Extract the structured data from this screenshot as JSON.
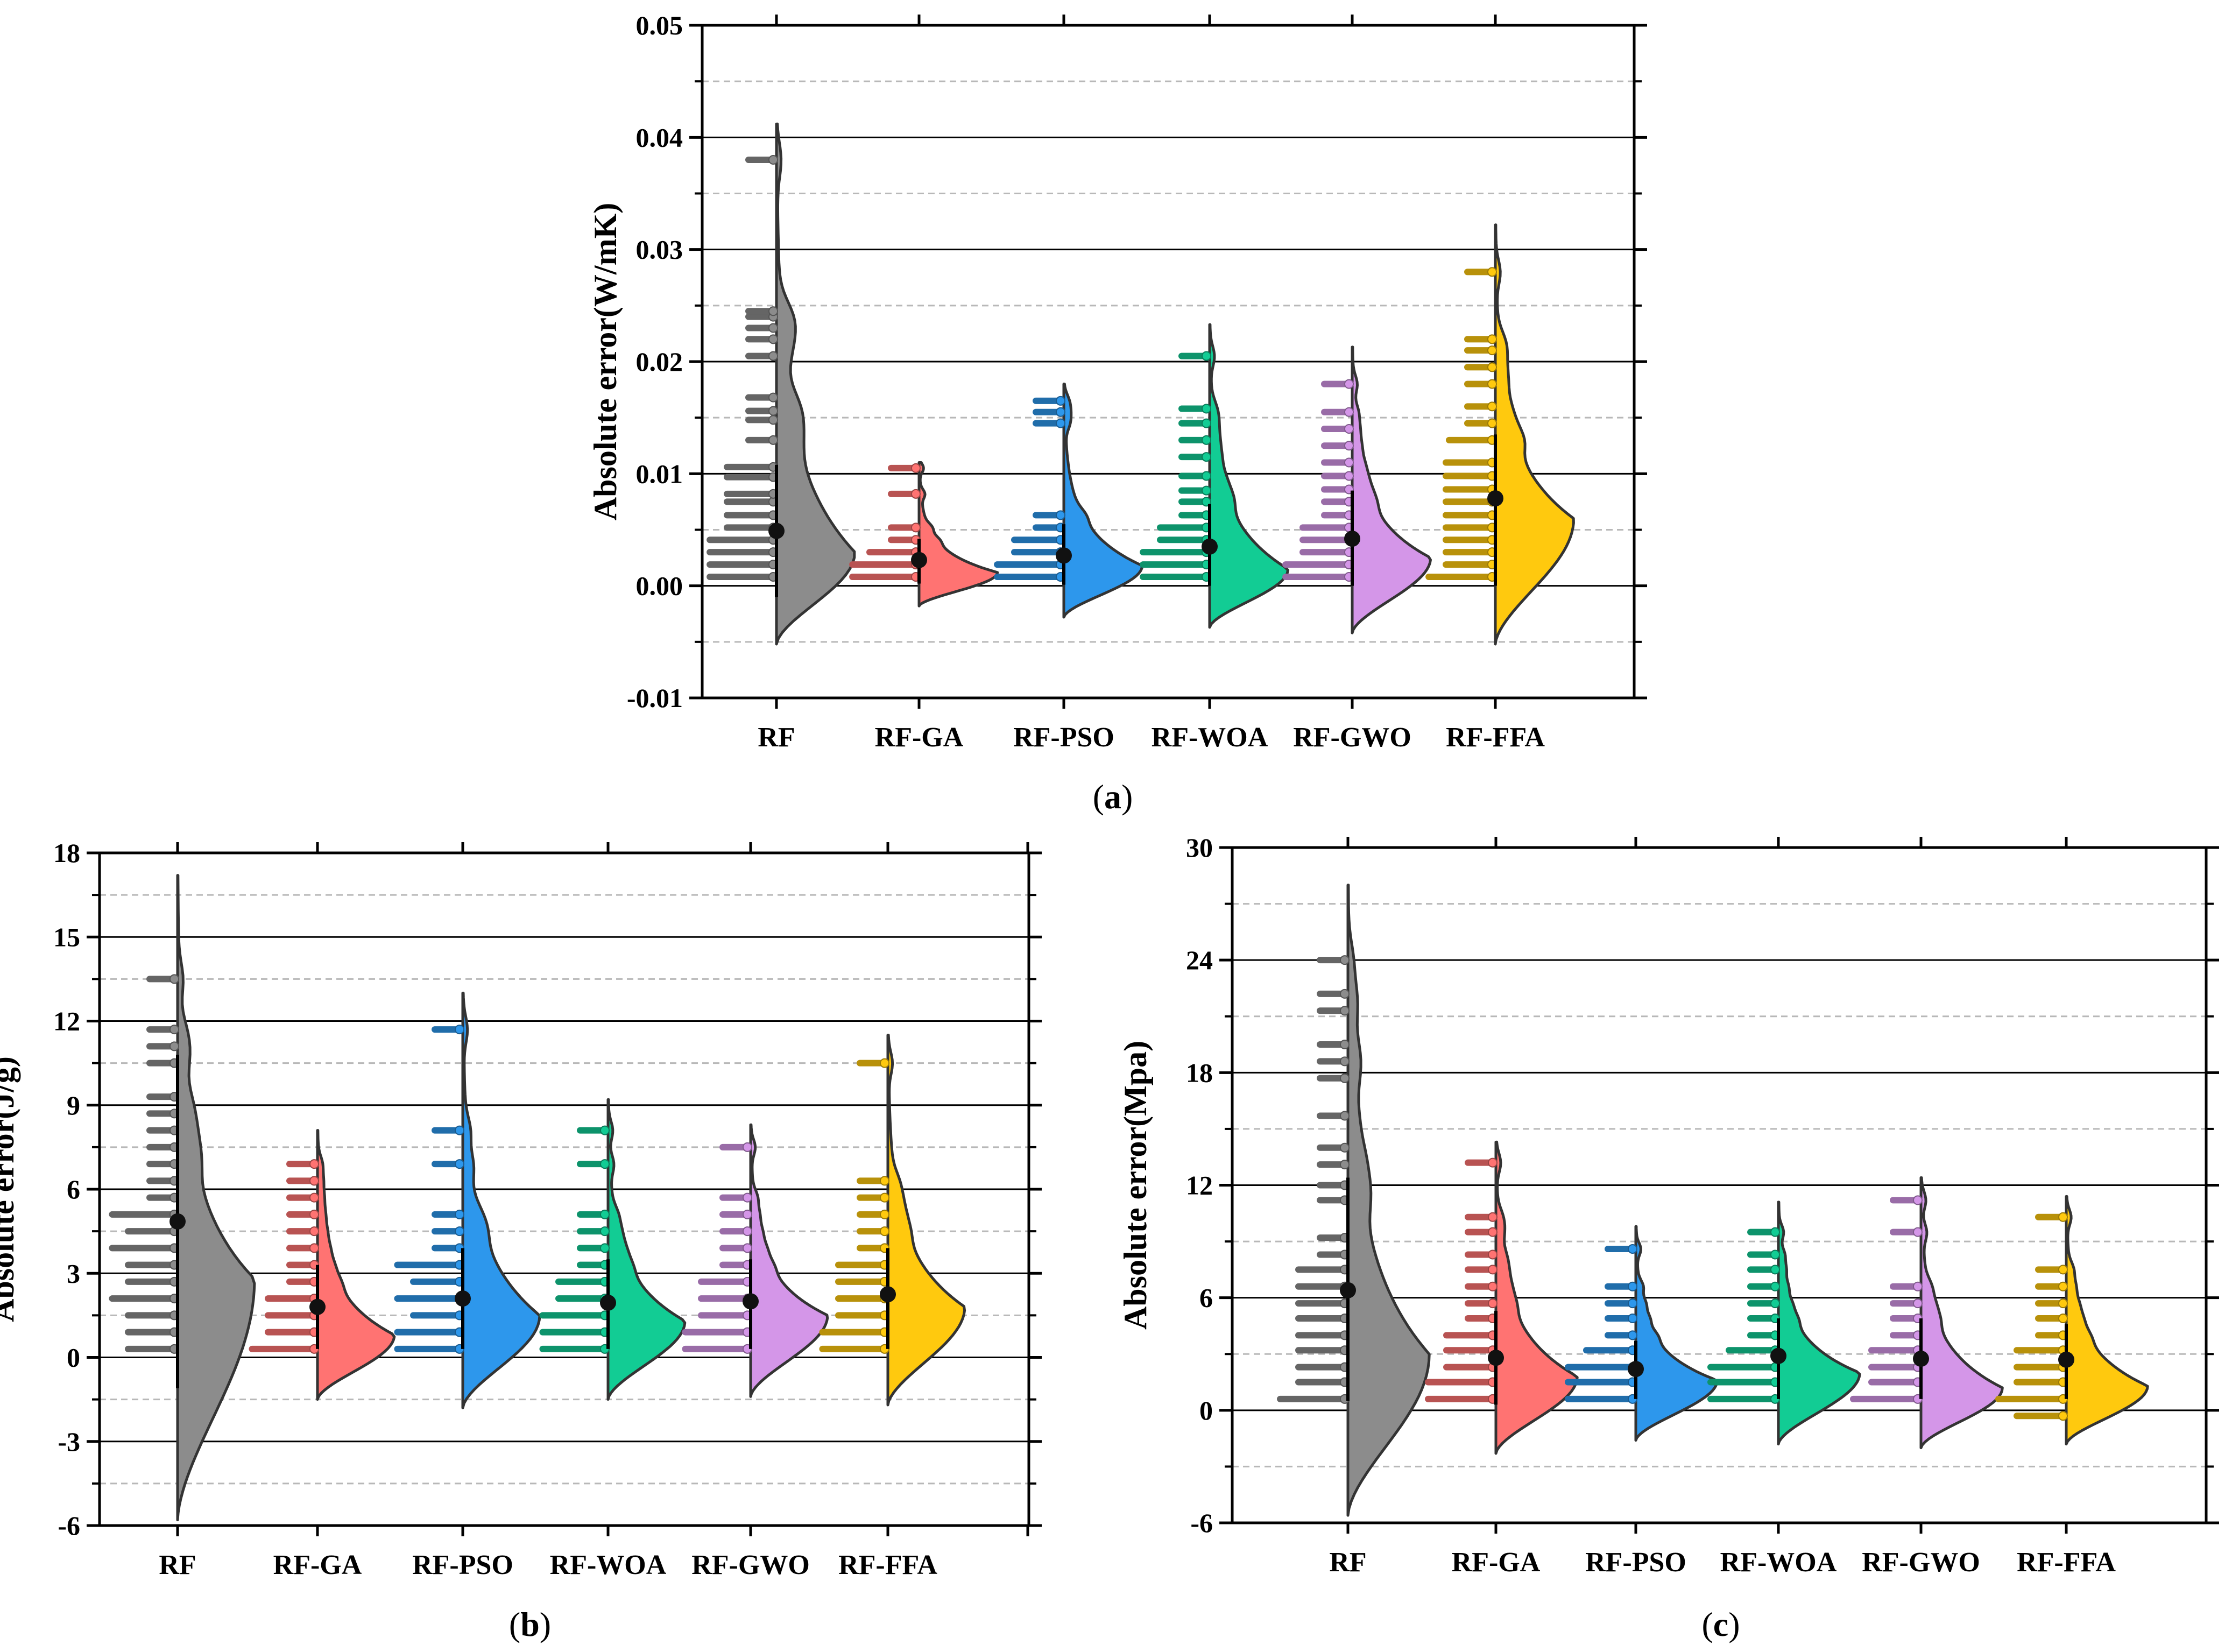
{
  "chart_data": [
    {
      "panel": "a",
      "caption_letter": "a",
      "type": "half-violin",
      "ylabel": "Absolute error(W/mK)",
      "ylim": [
        -0.01,
        0.05
      ],
      "major_ticks": [
        -0.01,
        0.0,
        0.01,
        0.02,
        0.03,
        0.04,
        0.05
      ],
      "tick_labels": [
        "-0.01",
        "0.00",
        "0.01",
        "0.02",
        "0.03",
        "0.04",
        "0.05"
      ],
      "categories": [
        "RF",
        "RF-GA",
        "RF-PSO",
        "RF-WOA",
        "RF-GWO",
        "RF-FFA"
      ],
      "colors": [
        "#8c8c8c",
        "#ff7372",
        "#2d97ec",
        "#12cc94",
        "#d496e8",
        "#ffc90e"
      ],
      "series": [
        {
          "name": "RF",
          "mean": 0.0049,
          "whisker": [
            -0.001,
            0.0108
          ],
          "density_range": [
            -0.0052,
            0.0412
          ],
          "peak": 0.003,
          "points": [
            0.0008,
            0.0008,
            0.0019,
            0.0019,
            0.003,
            0.003,
            0.0041,
            0.0041,
            0.0052,
            0.0063,
            0.0075,
            0.0082,
            0.0097,
            0.0106,
            0.013,
            0.0148,
            0.0156,
            0.0168,
            0.0205,
            0.022,
            0.023,
            0.024,
            0.0245,
            0.038
          ]
        },
        {
          "name": "RF-GA",
          "mean": 0.0023,
          "whisker": [
            0.0002,
            0.0042
          ],
          "density_range": [
            -0.0018,
            0.011
          ],
          "peak": 0.0012,
          "points": [
            0.0008,
            0.0008,
            0.0019,
            0.0019,
            0.003,
            0.0041,
            0.0052,
            0.0082,
            0.0105
          ]
        },
        {
          "name": "RF-PSO",
          "mean": 0.0027,
          "whisker": [
            0.0001,
            0.0055
          ],
          "density_range": [
            -0.0028,
            0.018
          ],
          "peak": 0.0018,
          "points": [
            0.0008,
            0.0008,
            0.0019,
            0.0019,
            0.003,
            0.0041,
            0.0052,
            0.0063,
            0.0145,
            0.0155,
            0.0165
          ]
        },
        {
          "name": "RF-WOA",
          "mean": 0.0035,
          "whisker": [
            0.0,
            0.0073
          ],
          "density_range": [
            -0.0037,
            0.0233
          ],
          "peak": 0.0015,
          "points": [
            0.0008,
            0.0008,
            0.0019,
            0.0019,
            0.003,
            0.003,
            0.0041,
            0.0052,
            0.0063,
            0.0075,
            0.0085,
            0.0098,
            0.0115,
            0.013,
            0.0145,
            0.0158,
            0.0205
          ]
        },
        {
          "name": "RF-GWO",
          "mean": 0.0042,
          "whisker": [
            0.0,
            0.0085
          ],
          "density_range": [
            -0.0042,
            0.0213
          ],
          "peak": 0.0025,
          "points": [
            0.0008,
            0.0008,
            0.0019,
            0.0019,
            0.003,
            0.0041,
            0.0052,
            0.0063,
            0.0075,
            0.0086,
            0.0098,
            0.011,
            0.0125,
            0.014,
            0.0155,
            0.018
          ]
        },
        {
          "name": "RF-FFA",
          "mean": 0.0078,
          "whisker": [
            0.0,
            0.0135
          ],
          "density_range": [
            -0.0052,
            0.0322
          ],
          "peak": 0.006,
          "points": [
            0.0008,
            0.0008,
            0.0019,
            0.003,
            0.0041,
            0.0052,
            0.0063,
            0.0075,
            0.0086,
            0.0098,
            0.011,
            0.013,
            0.013,
            0.0145,
            0.016,
            0.018,
            0.0195,
            0.021,
            0.022,
            0.028
          ]
        }
      ]
    },
    {
      "panel": "b",
      "caption_letter": "b",
      "type": "half-violin",
      "ylabel": "Absolute error(J/g)",
      "ylim": [
        -6,
        18
      ],
      "major_ticks": [
        -6,
        -3,
        0,
        3,
        6,
        9,
        12,
        15,
        18
      ],
      "tick_labels": [
        "-6",
        "-3",
        "0",
        "3",
        "6",
        "9",
        "12",
        "15",
        "18"
      ],
      "categories": [
        "RF",
        "RF-GA",
        "RF-PSO",
        "RF-WOA",
        "RF-GWO",
        "RF-FFA"
      ],
      "colors": [
        "#8c8c8c",
        "#ff7372",
        "#2d97ec",
        "#12cc94",
        "#d496e8",
        "#ffc90e"
      ],
      "series": [
        {
          "name": "RF",
          "mean": 4.85,
          "whisker": [
            -1.1,
            10.8
          ],
          "density_range": [
            -5.8,
            17.2
          ],
          "peak": 2.8,
          "points": [
            0.3,
            0.9,
            1.5,
            2.1,
            2.1,
            2.7,
            3.3,
            3.9,
            3.9,
            4.5,
            5.1,
            5.1,
            5.7,
            6.3,
            6.9,
            7.5,
            8.1,
            8.7,
            9.3,
            10.5,
            11.1,
            11.7,
            13.5
          ]
        },
        {
          "name": "RF-GA",
          "mean": 1.8,
          "whisker": [
            0.3,
            3.3
          ],
          "density_range": [
            -1.5,
            8.1
          ],
          "peak": 0.8,
          "points": [
            0.3,
            0.3,
            0.9,
            1.5,
            2.1,
            2.7,
            3.3,
            3.9,
            4.5,
            5.1,
            5.7,
            6.3,
            6.9
          ]
        },
        {
          "name": "RF-PSO",
          "mean": 2.1,
          "whisker": [
            0.3,
            3.9
          ],
          "density_range": [
            -1.8,
            13.0
          ],
          "peak": 1.5,
          "points": [
            0.3,
            0.3,
            0.9,
            0.9,
            1.5,
            2.1,
            2.1,
            2.7,
            3.3,
            3.3,
            3.9,
            4.5,
            5.1,
            6.9,
            8.1,
            11.7
          ]
        },
        {
          "name": "RF-WOA",
          "mean": 1.95,
          "whisker": [
            0.3,
            3.5
          ],
          "density_range": [
            -1.5,
            9.2
          ],
          "peak": 1.3,
          "points": [
            0.3,
            0.3,
            0.9,
            0.9,
            1.5,
            1.5,
            2.1,
            2.7,
            3.3,
            3.9,
            4.5,
            5.1,
            6.9,
            8.1
          ]
        },
        {
          "name": "RF-GWO",
          "mean": 2.0,
          "whisker": [
            0.3,
            3.5
          ],
          "density_range": [
            -1.4,
            8.3
          ],
          "peak": 1.5,
          "points": [
            0.3,
            0.3,
            0.9,
            0.9,
            1.5,
            2.1,
            2.7,
            3.3,
            3.9,
            4.5,
            5.1,
            5.7,
            7.5
          ]
        },
        {
          "name": "RF-FFA",
          "mean": 2.25,
          "whisker": [
            0.3,
            3.9
          ],
          "density_range": [
            -1.7,
            11.5
          ],
          "peak": 1.8,
          "points": [
            0.3,
            0.3,
            0.9,
            0.9,
            1.5,
            2.1,
            2.7,
            3.3,
            3.9,
            4.5,
            5.1,
            5.7,
            6.3,
            10.5
          ]
        }
      ]
    },
    {
      "panel": "c",
      "caption_letter": "c",
      "type": "half-violin",
      "ylabel": "Absolute error(Mpa)",
      "ylim": [
        -6,
        30
      ],
      "major_ticks": [
        -6,
        0,
        6,
        12,
        18,
        24,
        30
      ],
      "tick_labels": [
        "-6",
        "0",
        "6",
        "12",
        "18",
        "24",
        "30"
      ],
      "categories": [
        "RF",
        "RF-GA",
        "RF-PSO",
        "RF-WOA",
        "RF-GWO",
        "RF-FFA"
      ],
      "colors": [
        "#8c8c8c",
        "#ff7372",
        "#2d97ec",
        "#12cc94",
        "#d496e8",
        "#ffc90e"
      ],
      "series": [
        {
          "name": "RF",
          "mean": 6.4,
          "whisker": [
            0.5,
            12.4
          ],
          "density_range": [
            -5.6,
            28.0
          ],
          "peak": 3.0,
          "points": [
            0.6,
            0.6,
            1.5,
            2.3,
            3.2,
            4.0,
            4.9,
            5.7,
            6.6,
            7.5,
            8.3,
            9.2,
            11.2,
            12.0,
            13.1,
            14.0,
            15.7,
            17.7,
            18.6,
            19.5,
            21.3,
            22.2,
            24.0
          ]
        },
        {
          "name": "RF-GA",
          "mean": 2.8,
          "whisker": [
            0.3,
            5.3
          ],
          "density_range": [
            -2.3,
            14.3
          ],
          "peak": 1.8,
          "points": [
            0.6,
            0.6,
            1.5,
            1.5,
            2.3,
            3.2,
            4.0,
            4.9,
            5.7,
            6.6,
            7.5,
            8.3,
            9.5,
            10.3,
            13.2
          ]
        },
        {
          "name": "RF-PSO",
          "mean": 2.2,
          "whisker": [
            0.6,
            3.7
          ],
          "density_range": [
            -1.6,
            9.8
          ],
          "peak": 1.6,
          "points": [
            0.6,
            0.6,
            1.5,
            1.5,
            2.3,
            2.3,
            3.2,
            4.0,
            4.9,
            5.7,
            6.6,
            8.6
          ]
        },
        {
          "name": "RF-WOA",
          "mean": 2.9,
          "whisker": [
            0.6,
            4.9
          ],
          "density_range": [
            -1.8,
            11.1
          ],
          "peak": 2.0,
          "points": [
            0.6,
            0.6,
            1.5,
            1.5,
            2.3,
            2.3,
            3.2,
            4.0,
            4.9,
            5.7,
            6.6,
            7.5,
            8.3,
            9.5
          ]
        },
        {
          "name": "RF-GWO",
          "mean": 2.75,
          "whisker": [
            0.6,
            4.9
          ],
          "density_range": [
            -2.0,
            12.4
          ],
          "peak": 1.2,
          "points": [
            0.6,
            0.6,
            1.5,
            2.3,
            3.2,
            4.0,
            4.9,
            5.7,
            6.6,
            9.5,
            11.2
          ]
        },
        {
          "name": "RF-FFA",
          "mean": 2.7,
          "whisker": [
            0.6,
            4.6
          ],
          "density_range": [
            -1.8,
            11.4
          ],
          "peak": 1.3,
          "points": [
            -0.3,
            0.6,
            0.6,
            1.5,
            2.3,
            3.2,
            4.0,
            4.9,
            5.7,
            6.6,
            7.5,
            10.3
          ]
        }
      ]
    }
  ]
}
